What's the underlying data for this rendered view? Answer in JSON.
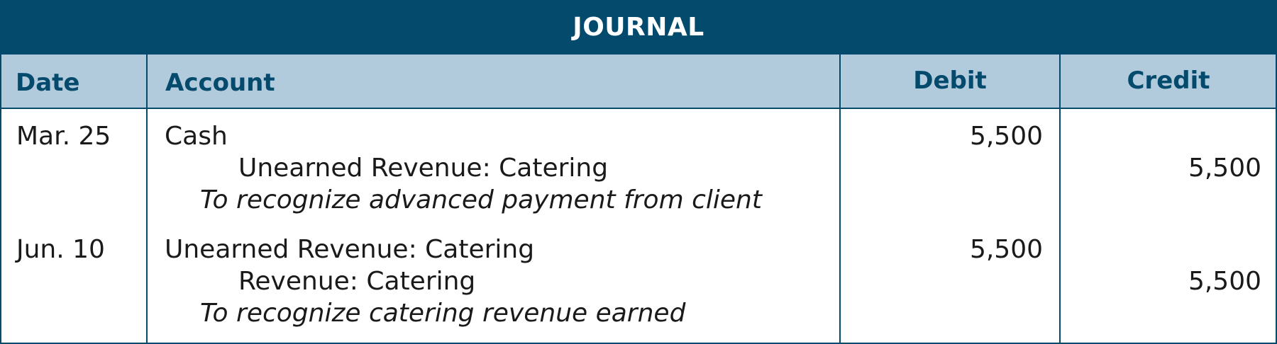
{
  "title": "JOURNAL",
  "columns": {
    "date": "Date",
    "account": "Account",
    "debit": "Debit",
    "credit": "Credit"
  },
  "entries": [
    {
      "date": "Mar. 25",
      "debit_account": "Cash",
      "credit_account": "Unearned Revenue: Catering",
      "explanation": "To recognize advanced payment from client",
      "debit": "5,500",
      "credit": "5,500"
    },
    {
      "date": "Jun. 10",
      "debit_account": "Unearned Revenue: Catering",
      "credit_account": "Revenue: Catering",
      "explanation": "To recognize catering revenue earned",
      "debit": "5,500",
      "credit": "5,500"
    }
  ],
  "colors": {
    "title_bg": "#034a6d",
    "header_bg": "#b1cadc",
    "header_text": "#034a6d",
    "border": "#034a6d"
  }
}
